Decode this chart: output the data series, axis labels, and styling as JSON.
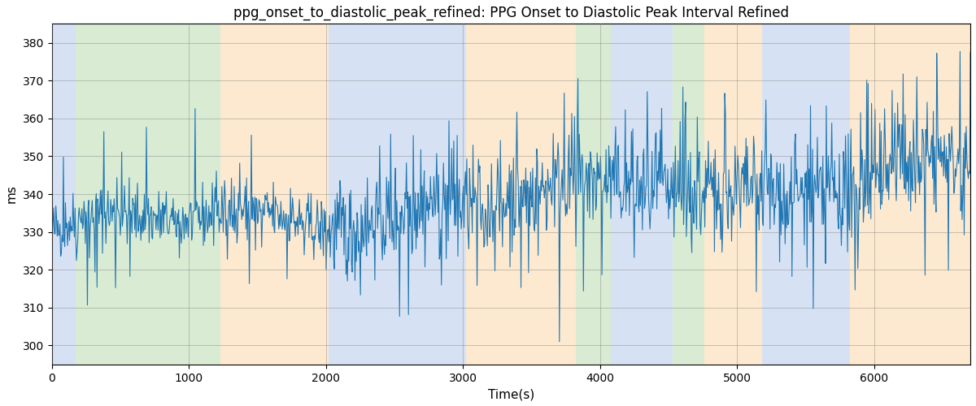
{
  "title": "ppg_onset_to_diastolic_peak_refined: PPG Onset to Diastolic Peak Interval Refined",
  "xlabel": "Time(s)",
  "ylabel": "ms",
  "xlim": [
    0,
    6700
  ],
  "ylim": [
    295,
    385
  ],
  "yticks": [
    300,
    310,
    320,
    330,
    340,
    350,
    360,
    370,
    380
  ],
  "xticks": [
    0,
    1000,
    2000,
    3000,
    4000,
    5000,
    6000
  ],
  "line_color": "#1f77b4",
  "line_width": 0.8,
  "bg_bands": [
    {
      "xmin": 0,
      "xmax": 175,
      "color": "#aec6e8",
      "alpha": 0.5
    },
    {
      "xmin": 175,
      "xmax": 1230,
      "color": "#b5d9a8",
      "alpha": 0.5
    },
    {
      "xmin": 1230,
      "xmax": 2020,
      "color": "#fdd5a0",
      "alpha": 0.5
    },
    {
      "xmin": 2020,
      "xmax": 3020,
      "color": "#aec6e8",
      "alpha": 0.5
    },
    {
      "xmin": 3020,
      "xmax": 3820,
      "color": "#fdd5a0",
      "alpha": 0.5
    },
    {
      "xmin": 3820,
      "xmax": 4080,
      "color": "#b5d9a8",
      "alpha": 0.5
    },
    {
      "xmin": 4080,
      "xmax": 4530,
      "color": "#aec6e8",
      "alpha": 0.5
    },
    {
      "xmin": 4530,
      "xmax": 4760,
      "color": "#b5d9a8",
      "alpha": 0.5
    },
    {
      "xmin": 4760,
      "xmax": 5180,
      "color": "#fdd5a0",
      "alpha": 0.5
    },
    {
      "xmin": 5180,
      "xmax": 5820,
      "color": "#aec6e8",
      "alpha": 0.5
    },
    {
      "xmin": 5820,
      "xmax": 6700,
      "color": "#fdd5a0",
      "alpha": 0.5
    }
  ],
  "seed": 42,
  "n_points": 1340,
  "title_fontsize": 12,
  "fig_width": 12.0,
  "fig_height": 5.0,
  "fig_dpi": 100
}
